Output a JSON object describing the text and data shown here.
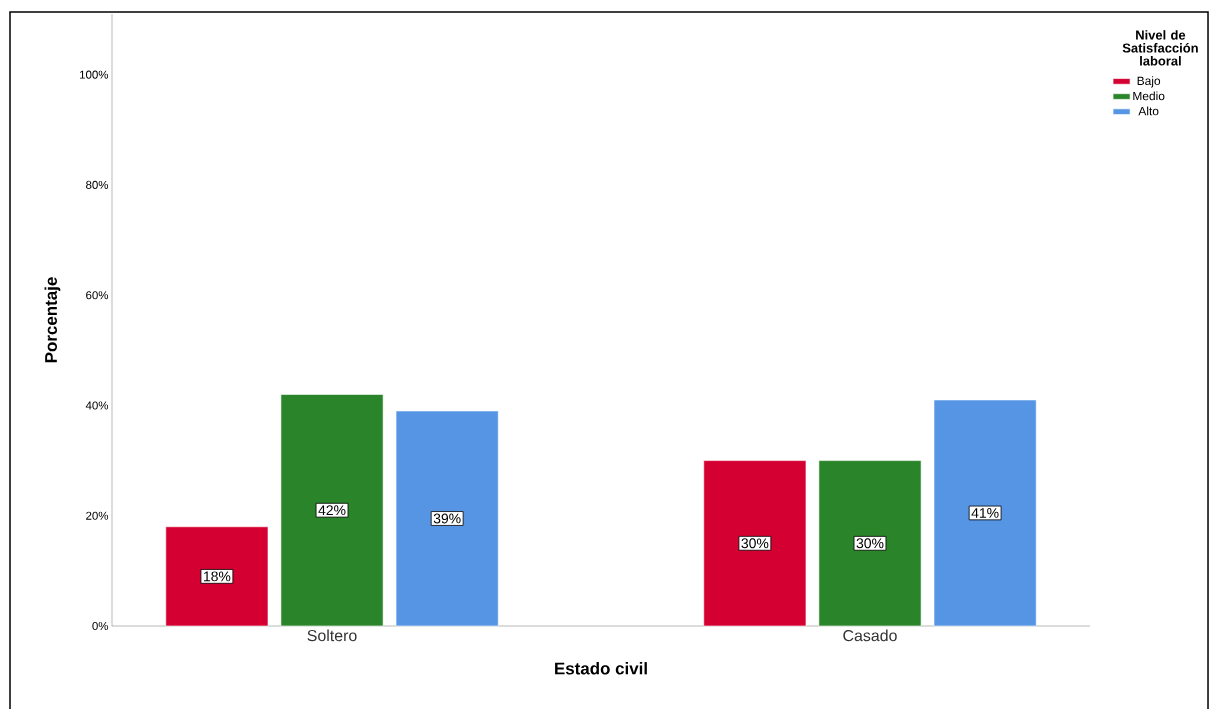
{
  "chart_data": {
    "type": "bar",
    "xlabel": "Estado civil",
    "ylabel": "Porcentaje",
    "legend_title": "Nivel de Satisfacción laboral",
    "legend": "top right",
    "categories": [
      "Soltero",
      "Casado"
    ],
    "series": [
      {
        "name": "Bajo",
        "color": "#d50032",
        "values": [
          18,
          30
        ],
        "value_labels": [
          "18%",
          "30%"
        ]
      },
      {
        "name": "Medio",
        "color": "#2a852a",
        "values": [
          42,
          30
        ],
        "value_labels": [
          "42%",
          "30%"
        ]
      },
      {
        "name": "Alto",
        "color": "#5595e4",
        "values": [
          39,
          41
        ],
        "value_labels": [
          "39%",
          "41%"
        ]
      }
    ],
    "ylim": [
      0,
      111
    ],
    "yticks": [
      {
        "value": 0,
        "label": "0%"
      },
      {
        "value": 20,
        "label": "20%"
      },
      {
        "value": 40,
        "label": "40%"
      },
      {
        "value": 60,
        "label": "60%"
      },
      {
        "value": 80,
        "label": "80%"
      },
      {
        "value": 100,
        "label": "100%"
      }
    ]
  }
}
